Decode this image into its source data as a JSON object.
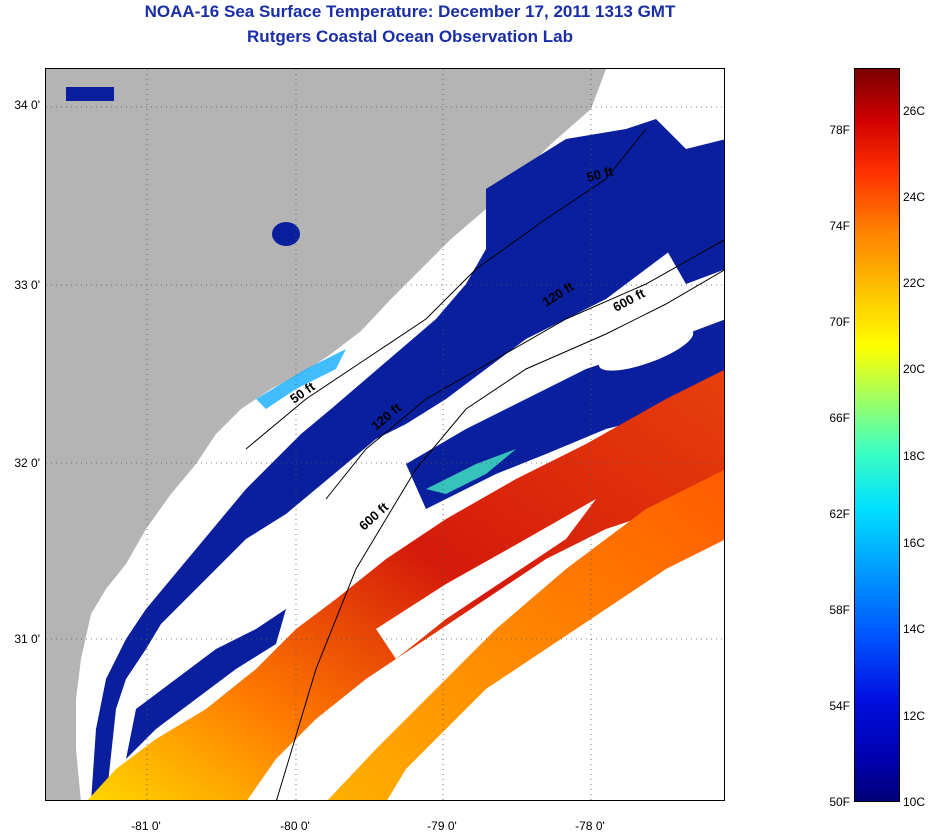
{
  "header": {
    "title": "NOAA-16 Sea Surface Temperature:  December 17, 2011 1313 GMT",
    "subtitle": "Rutgers Coastal Ocean Observation Lab"
  },
  "map": {
    "latitude_labels": [
      "34 0'",
      "33 0'",
      "32 0'",
      "31 0'"
    ],
    "longitude_labels": [
      "-81 0'",
      "-80 0'",
      "-79 0'",
      "-78 0'"
    ],
    "isobath_labels": [
      "50 ft",
      "120 ft",
      "600 ft",
      "50 ft",
      "120 ft",
      "600 ft"
    ],
    "colors": {
      "land": "#b4b4b4",
      "cloud": "#ffffff",
      "cold": "#0a1f9e",
      "warm": "#e02a10"
    }
  },
  "colorbar": {
    "fahrenheit_labels": [
      "78F",
      "74F",
      "70F",
      "66F",
      "62F",
      "58F",
      "54F",
      "50F"
    ],
    "celsius_labels": [
      "26C",
      "24C",
      "22C",
      "20C",
      "18C",
      "16C",
      "14C",
      "12C",
      "10C"
    ]
  }
}
